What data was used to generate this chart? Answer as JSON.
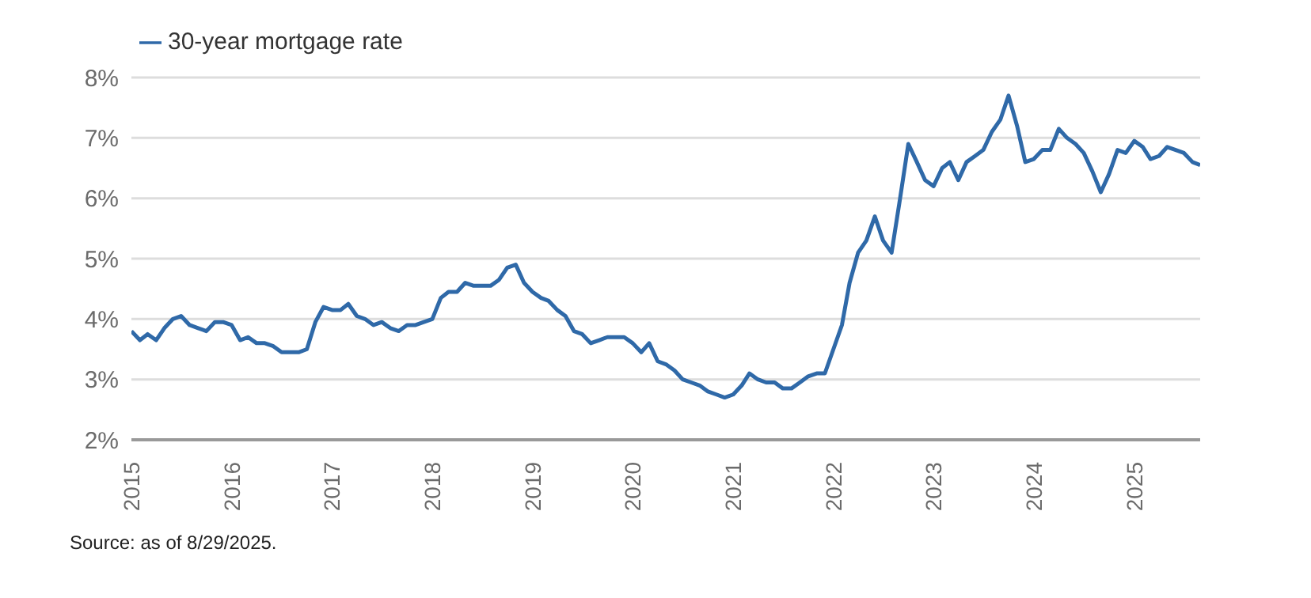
{
  "chart_data": {
    "type": "line",
    "xlim": [
      "2015-01-01",
      "2025-08-29"
    ],
    "xticks": [
      "2015",
      "2016",
      "2017",
      "2018",
      "2019",
      "2020",
      "2021",
      "2022",
      "2023",
      "2024",
      "2025"
    ],
    "ylim": [
      2,
      8
    ],
    "yticks": [
      {
        "value": 2,
        "label": "2%"
      },
      {
        "value": 3,
        "label": "3%"
      },
      {
        "value": 4,
        "label": "4%"
      },
      {
        "value": 5,
        "label": "5%"
      },
      {
        "value": 6,
        "label": "6%"
      },
      {
        "value": 7,
        "label": "7%"
      },
      {
        "value": 8,
        "label": "8%"
      }
    ],
    "grid": "y",
    "legend": "top left",
    "marker": "none",
    "line_style": "solid",
    "x": [
      "2015-01",
      "2015-02",
      "2015-03",
      "2015-04",
      "2015-05",
      "2015-06",
      "2015-07",
      "2015-08",
      "2015-09",
      "2015-10",
      "2015-11",
      "2015-12",
      "2016-01",
      "2016-02",
      "2016-03",
      "2016-04",
      "2016-05",
      "2016-06",
      "2016-07",
      "2016-08",
      "2016-09",
      "2016-10",
      "2016-11",
      "2016-12",
      "2017-01",
      "2017-02",
      "2017-03",
      "2017-04",
      "2017-05",
      "2017-06",
      "2017-07",
      "2017-08",
      "2017-09",
      "2017-10",
      "2017-11",
      "2017-12",
      "2018-01",
      "2018-02",
      "2018-03",
      "2018-04",
      "2018-05",
      "2018-06",
      "2018-07",
      "2018-08",
      "2018-09",
      "2018-10",
      "2018-11",
      "2018-12",
      "2019-01",
      "2019-02",
      "2019-03",
      "2019-04",
      "2019-05",
      "2019-06",
      "2019-07",
      "2019-08",
      "2019-09",
      "2019-10",
      "2019-11",
      "2019-12",
      "2020-01",
      "2020-02",
      "2020-03",
      "2020-04",
      "2020-05",
      "2020-06",
      "2020-07",
      "2020-08",
      "2020-09",
      "2020-10",
      "2020-11",
      "2020-12",
      "2021-01",
      "2021-02",
      "2021-03",
      "2021-04",
      "2021-05",
      "2021-06",
      "2021-07",
      "2021-08",
      "2021-09",
      "2021-10",
      "2021-11",
      "2021-12",
      "2022-01",
      "2022-02",
      "2022-03",
      "2022-04",
      "2022-05",
      "2022-06",
      "2022-07",
      "2022-08",
      "2022-09",
      "2022-10",
      "2022-11",
      "2022-12",
      "2023-01",
      "2023-02",
      "2023-03",
      "2023-04",
      "2023-05",
      "2023-06",
      "2023-07",
      "2023-08",
      "2023-09",
      "2023-10",
      "2023-11",
      "2023-12",
      "2024-01",
      "2024-02",
      "2024-03",
      "2024-04",
      "2024-05",
      "2024-06",
      "2024-07",
      "2024-08",
      "2024-09",
      "2024-10",
      "2024-11",
      "2024-12",
      "2025-01",
      "2025-02",
      "2025-03",
      "2025-04",
      "2025-05",
      "2025-06",
      "2025-07",
      "2025-08",
      "2025-08-29"
    ],
    "series": [
      {
        "name": "30-year mortgage rate",
        "color": "#2f69a8",
        "values": [
          3.8,
          3.65,
          3.75,
          3.65,
          3.85,
          4.0,
          4.05,
          3.9,
          3.85,
          3.8,
          3.95,
          3.95,
          3.9,
          3.65,
          3.7,
          3.6,
          3.6,
          3.55,
          3.45,
          3.45,
          3.45,
          3.5,
          3.95,
          4.2,
          4.15,
          4.15,
          4.25,
          4.05,
          4.0,
          3.9,
          3.95,
          3.85,
          3.8,
          3.9,
          3.9,
          3.95,
          4.0,
          4.35,
          4.45,
          4.45,
          4.6,
          4.55,
          4.55,
          4.55,
          4.65,
          4.85,
          4.9,
          4.6,
          4.45,
          4.35,
          4.3,
          4.15,
          4.05,
          3.8,
          3.75,
          3.6,
          3.65,
          3.7,
          3.7,
          3.7,
          3.6,
          3.45,
          3.6,
          3.3,
          3.25,
          3.15,
          3.0,
          2.95,
          2.9,
          2.8,
          2.75,
          2.7,
          2.75,
          2.9,
          3.1,
          3.0,
          2.95,
          2.95,
          2.85,
          2.85,
          2.95,
          3.05,
          3.1,
          3.1,
          3.5,
          3.9,
          4.6,
          5.1,
          5.3,
          5.7,
          5.3,
          5.1,
          6.0,
          6.9,
          6.6,
          6.3,
          6.2,
          6.5,
          6.6,
          6.3,
          6.6,
          6.7,
          6.8,
          7.1,
          7.3,
          7.7,
          7.2,
          6.6,
          6.65,
          6.8,
          6.8,
          7.15,
          7.0,
          6.9,
          6.75,
          6.45,
          6.1,
          6.4,
          6.8,
          6.75,
          6.95,
          6.85,
          6.65,
          6.7,
          6.85,
          6.8,
          6.75,
          6.6,
          6.55
        ]
      }
    ],
    "annotations": [
      "Source: as of 8/29/2025."
    ]
  }
}
